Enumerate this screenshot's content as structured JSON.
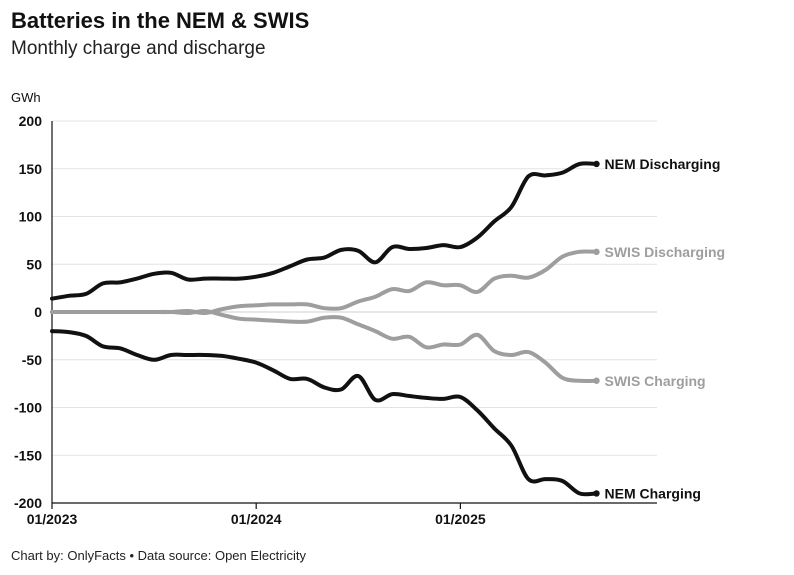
{
  "header": {
    "title": "Batteries in the NEM & SWIS",
    "subtitle": "Monthly charge and discharge"
  },
  "footer": {
    "credit": "Chart by: OnlyFacts • Data source: Open Electricity"
  },
  "colors": {
    "nem": "#111111",
    "swis": "#9e9e9e",
    "grid": "#e3e3e3",
    "axis": "#111111"
  },
  "chart_data": {
    "type": "line",
    "title": "Batteries in the NEM & SWIS",
    "subtitle": "Monthly charge and discharge",
    "ylabel": "GWh",
    "ylim": [
      -200,
      200
    ],
    "yticks": [
      200,
      150,
      100,
      50,
      0,
      -50,
      -100,
      -150,
      -200
    ],
    "xlim": [
      "01/2023",
      "09/2025"
    ],
    "xticks": [
      "01/2023",
      "01/2024",
      "01/2025"
    ],
    "grid": true,
    "legend": "direct labels at line ends",
    "x": [
      "01/2023",
      "02/2023",
      "03/2023",
      "04/2023",
      "05/2023",
      "06/2023",
      "07/2023",
      "08/2023",
      "09/2023",
      "10/2023",
      "11/2023",
      "12/2023",
      "01/2024",
      "02/2024",
      "03/2024",
      "04/2024",
      "05/2024",
      "06/2024",
      "07/2024",
      "08/2024",
      "09/2024",
      "10/2024",
      "11/2024",
      "12/2024",
      "01/2025",
      "02/2025",
      "03/2025",
      "04/2025",
      "05/2025",
      "06/2025",
      "07/2025",
      "08/2025",
      "09/2025"
    ],
    "series": [
      {
        "name": "NEM Discharging",
        "color": "#111111",
        "values": [
          14,
          17,
          19,
          30,
          31,
          35,
          40,
          41,
          34,
          35,
          35,
          35,
          37,
          41,
          48,
          55,
          57,
          65,
          64,
          52,
          68,
          66,
          67,
          70,
          68,
          78,
          95,
          110,
          142,
          143,
          146,
          155,
          155
        ]
      },
      {
        "name": "SWIS Discharging",
        "color": "#9e9e9e",
        "values": [
          0,
          0,
          0,
          0,
          0,
          0,
          0,
          0,
          1,
          -1,
          3,
          6,
          7,
          8,
          8,
          8,
          4,
          4,
          11,
          16,
          24,
          22,
          31,
          28,
          28,
          21,
          35,
          38,
          36,
          44,
          58,
          63,
          63
        ]
      },
      {
        "name": "SWIS Charging",
        "color": "#9e9e9e",
        "values": [
          0,
          0,
          0,
          0,
          0,
          0,
          0,
          0,
          -1,
          1,
          -3,
          -7,
          -8,
          -9,
          -10,
          -10,
          -6,
          -6,
          -13,
          -20,
          -28,
          -26,
          -37,
          -34,
          -34,
          -24,
          -41,
          -45,
          -42,
          -53,
          -69,
          -72,
          -72
        ]
      },
      {
        "name": "NEM Charging",
        "color": "#111111",
        "values": [
          -20,
          -21,
          -25,
          -36,
          -38,
          -45,
          -50,
          -45,
          -45,
          -45,
          -46,
          -49,
          -53,
          -61,
          -70,
          -70,
          -79,
          -81,
          -67,
          -92,
          -86,
          -88,
          -90,
          -91,
          -89,
          -103,
          -122,
          -140,
          -175,
          -175,
          -177,
          -190,
          -190
        ]
      }
    ]
  }
}
